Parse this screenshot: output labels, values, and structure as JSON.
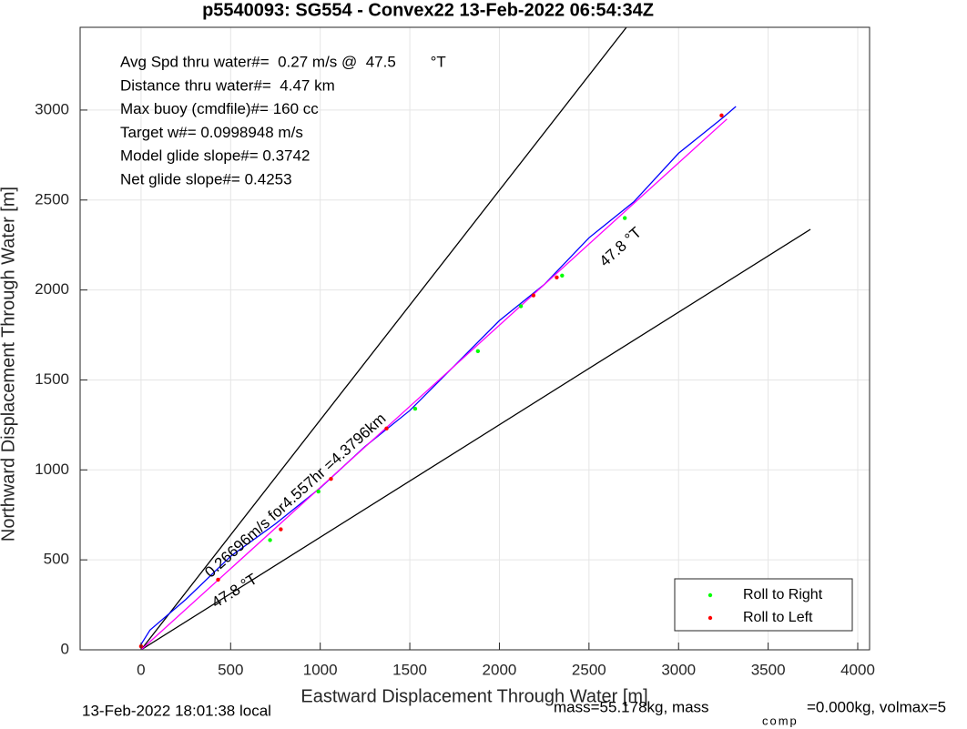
{
  "chart_data": {
    "type": "line",
    "title": "p5540093: SG554 - Convex22 13-Feb-2022 06:54:34Z",
    "xlabel": "Eastward Displacement Through Water [m]",
    "ylabel": "Northward Displacement Through Water [m]",
    "xlim": [
      -340,
      4066
    ],
    "ylim": [
      0,
      3460
    ],
    "xticks": [
      0,
      500,
      1000,
      1500,
      2000,
      2500,
      3000,
      3500,
      4000
    ],
    "yticks": [
      0,
      500,
      1000,
      1500,
      2000,
      2500,
      3000
    ],
    "grid": true,
    "info_lines": [
      "Avg Spd thru water#=  0.27 m/s @  47.5        °T",
      "Distance thru water#=  4.47 km",
      "Max buoy (cmdfile)#= 160 cc",
      "Target w#= 0.0998948 m/s",
      "Model glide slope#= 0.3742",
      "Net glide slope#= 0.4253"
    ],
    "annotations": [
      "0.26696m/s for4.557hr =4.3796km",
      "47.8 °T",
      "47.8 °T"
    ],
    "series": [
      {
        "mode": "line",
        "color": "#000000",
        "x": [
          0,
          2709
        ],
        "values": [
          0,
          3460
        ]
      },
      {
        "mode": "line",
        "color": "#000000",
        "x": [
          0,
          3736
        ],
        "values": [
          0,
          2337
        ]
      },
      {
        "mode": "line",
        "color": "#0000ff",
        "x": [
          0,
          50,
          250,
          500,
          750,
          1000,
          1250,
          1500,
          1750,
          2000,
          2250,
          2500,
          2750,
          3000,
          3250,
          3320
        ],
        "values": [
          30,
          110,
          280,
          520,
          700,
          900,
          1130,
          1330,
          1580,
          1830,
          2030,
          2290,
          2490,
          2760,
          2960,
          3020
        ]
      },
      {
        "mode": "line",
        "color": "#ff00ff",
        "x": [
          0,
          3270
        ],
        "values": [
          0,
          2950
        ]
      },
      {
        "mode": "points",
        "name": "Roll to Right",
        "color": "#00ff00",
        "x": [
          720,
          990,
          1530,
          1880,
          2120,
          2350,
          2700
        ],
        "values": [
          610,
          880,
          1340,
          1660,
          1910,
          2080,
          2400
        ]
      },
      {
        "mode": "points",
        "name": "Roll to Left",
        "color": "#ff0000",
        "x": [
          0,
          430,
          780,
          1060,
          1370,
          2190,
          2320,
          3240
        ],
        "values": [
          20,
          390,
          670,
          950,
          1230,
          1970,
          2070,
          2970
        ]
      }
    ],
    "footer": {
      "left": "13-Feb-2022 18:01:38 local",
      "mass": "mass=55.178kg, mass",
      "sub": "comp",
      "rest": "=0.000kg, volmax=5"
    }
  }
}
